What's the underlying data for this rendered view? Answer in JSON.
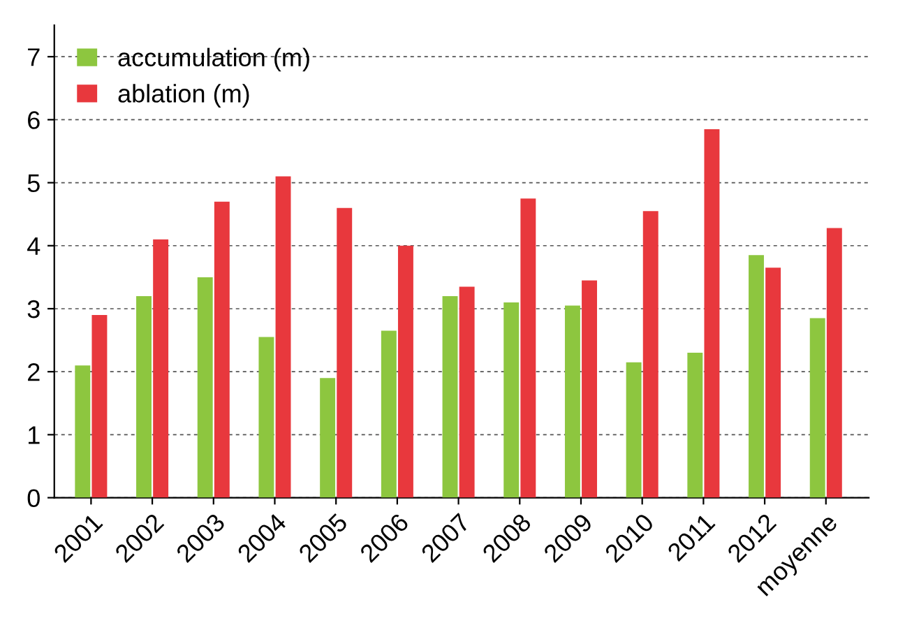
{
  "chart_data": {
    "type": "bar",
    "categories": [
      "2001",
      "2002",
      "2003",
      "2004",
      "2005",
      "2006",
      "2007",
      "2008",
      "2009",
      "2010",
      "2011",
      "2012",
      "moyenne"
    ],
    "series": [
      {
        "name": "accumulation (m)",
        "color": "#8dc63f",
        "values": [
          2.1,
          3.2,
          3.5,
          2.55,
          1.9,
          2.65,
          3.2,
          3.1,
          3.05,
          2.15,
          2.3,
          3.85,
          2.85
        ]
      },
      {
        "name": "ablation (m)",
        "color": "#e8383d",
        "values": [
          2.9,
          4.1,
          4.7,
          5.1,
          4.6,
          4.0,
          3.35,
          4.75,
          3.45,
          4.55,
          5.85,
          3.65,
          4.28
        ]
      }
    ],
    "ylim": [
      0,
      7.5
    ],
    "yticks": [
      0,
      1,
      2,
      3,
      4,
      5,
      6,
      7
    ],
    "grid": "y",
    "legend": "top left"
  }
}
